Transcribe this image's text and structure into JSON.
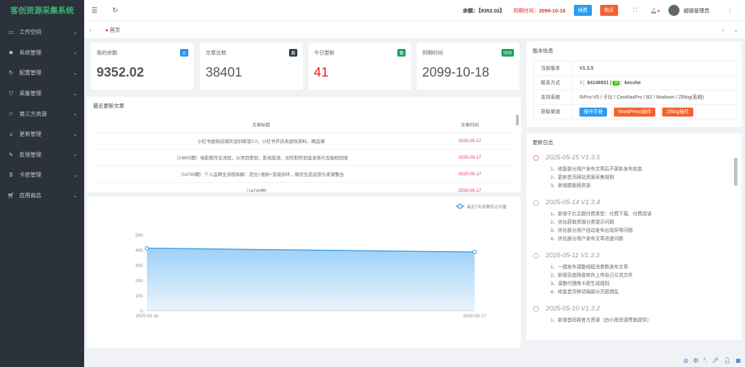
{
  "app": {
    "title": "客创资源采集系统"
  },
  "sidebar": {
    "items": [
      {
        "label": "工作空间",
        "icon": "monitor-icon"
      },
      {
        "label": "系统管理",
        "icon": "gear-icon"
      },
      {
        "label": "配置管理",
        "icon": "refresh-icon"
      },
      {
        "label": "采集管理",
        "icon": "shield-icon"
      },
      {
        "label": "第三方资源",
        "icon": "flag-icon"
      },
      {
        "label": "更新管理",
        "icon": "bell-icon"
      },
      {
        "label": "反馈管理",
        "icon": "feedback-icon"
      },
      {
        "label": "卡密管理",
        "icon": "dollar-icon"
      },
      {
        "label": "应用商店",
        "icon": "cart-icon"
      }
    ]
  },
  "header": {
    "balance_label": "余额：",
    "balance_value": "【9352.02】",
    "expire_label": "到期时间：",
    "expire_value": "2099-10-18",
    "renew": "续费",
    "buy": "购买",
    "user": "超级管理员"
  },
  "tabs": {
    "home": "首页"
  },
  "stats": [
    {
      "title": "我的余额",
      "badge": "元",
      "value": "9352.02",
      "badge_color": "#2d8cf0"
    },
    {
      "title": "文章总数",
      "badge": "篇",
      "value": "38401",
      "badge_color": "#2f3d4f"
    },
    {
      "title": "今日更新",
      "badge": "篇",
      "value": "41",
      "badge_color": "#19a15f"
    },
    {
      "title": "到期时间",
      "badge": "时间",
      "value": "2099-10-18",
      "badge_color": "#19a15f"
    }
  ],
  "articles": {
    "title": "最近更新文章",
    "col_title": "文章标题",
    "col_time": "文章时间",
    "rows": [
      {
        "title": "小红书虚拟店铺实战训练营2.0，小红书开店卖虚拟资料，精品课",
        "time": "2025-05-17"
      },
      {
        "title": "（14800期）电影制作全流程，从项目策划、影视投资、创作制作到宣发排片及版权回收",
        "time": "2025-05-17"
      },
      {
        "title": "（14799期）个人品牌全流程拆解：定位+涨粉+变现闭环，微信生态运营与资源整合",
        "time": "2025-05-17"
      },
      {
        "title": "（14798期）……",
        "time": "2025-05-17"
      }
    ]
  },
  "chart_data": {
    "type": "area",
    "legend": "最近7天采集的访问量",
    "x": [
      "2025-05-16",
      "2025-05-17"
    ],
    "series": [
      {
        "name": "最近7天采集的访问量",
        "values": [
          410,
          385
        ]
      }
    ],
    "ylim": [
      0,
      500
    ],
    "yticks": [
      0,
      100,
      200,
      300,
      400,
      500
    ],
    "color": "#3fa0e8"
  },
  "version": {
    "title": "版本信息",
    "rows": {
      "current_label": "当前版本",
      "current": "V1.3.5",
      "contact_label": "联系方式",
      "qq": "：84146931 |",
      "wechat": "：kecshe",
      "systems_label": "支持系统",
      "systems": "RiPro-V5 / 子比 / CeoMaxPro / B2 / Modown / ZBlog(系统)",
      "channel_label": "获取渠道"
    },
    "buttons": [
      "操作手册",
      "WordPress插件",
      "ZBlog插件"
    ]
  },
  "changelog": {
    "title": "更新日志",
    "entries": [
      {
        "head": "2025-05-15  V1.3.5",
        "items": [
          "1、修复部分用户发布文章后不更新发布状态",
          "2、更新首页网站资源采集规则",
          "3、新增模板网资源"
        ]
      },
      {
        "head": "2025-05-14  V1.3.4",
        "items": [
          "1、新增子比主题付费类型：付费下载、付费阅读",
          "2、优化获取资源分类提示问题",
          "3、优化部分用户自动发布出现异常问题",
          "4、优化部分用户发布文章进度问题"
        ]
      },
      {
        "head": "2025-05-11  V1.3.3",
        "items": [
          "1、一键发布调整线程池参数发布文章",
          "2、新增百度网盘转存上传自己引流文件",
          "3、调整代理商卡密生成规则",
          "4、修复首页移动端部分页面错乱"
        ]
      },
      {
        "head": "2025-05-10  V1.3.2",
        "items": [
          "1、新增首码网官方资源（由小雨资源赞助提供）"
        ]
      }
    ]
  },
  "ime": {
    "lang": "中"
  }
}
